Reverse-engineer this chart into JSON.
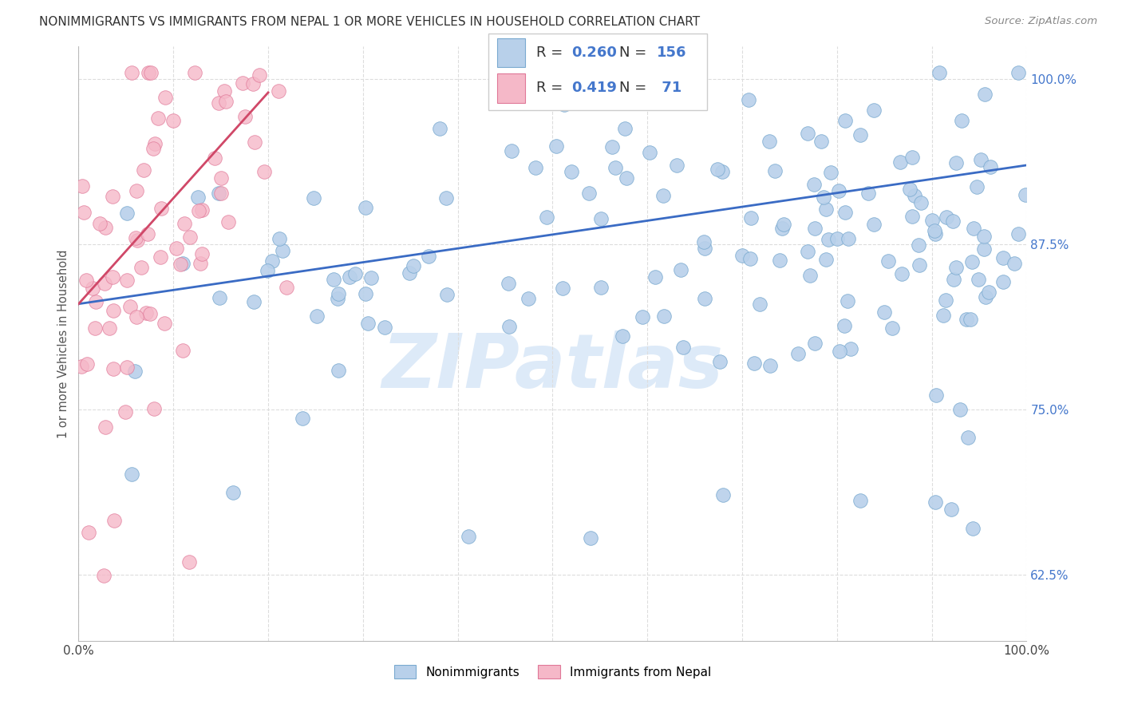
{
  "title": "NONIMMIGRANTS VS IMMIGRANTS FROM NEPAL 1 OR MORE VEHICLES IN HOUSEHOLD CORRELATION CHART",
  "source": "Source: ZipAtlas.com",
  "ylabel": "1 or more Vehicles in Household",
  "ytick_labels": [
    "62.5%",
    "75.0%",
    "87.5%",
    "100.0%"
  ],
  "ytick_values": [
    0.625,
    0.75,
    0.875,
    1.0
  ],
  "xlim": [
    0.0,
    1.0
  ],
  "ylim": [
    0.575,
    1.025
  ],
  "legend_r_blue": "0.260",
  "legend_n_blue": "156",
  "legend_r_pink": "0.419",
  "legend_n_pink": " 71",
  "blue_dot_color": "#b8d0ea",
  "blue_edge_color": "#7aaad0",
  "pink_dot_color": "#f5b8c8",
  "pink_edge_color": "#e07898",
  "trend_blue_color": "#3a6bc4",
  "trend_pink_color": "#d04868",
  "legend_label_blue": "Nonimmigrants",
  "legend_label_pink": "Immigrants from Nepal",
  "watermark": "ZIPatlas",
  "title_color": "#333333",
  "source_color": "#888888",
  "grid_color": "#dddddd",
  "ytick_color": "#4477cc",
  "background": "#ffffff",
  "blue_trend_start_y": 0.83,
  "blue_trend_end_y": 0.935,
  "pink_trend_start_y": 0.83,
  "pink_trend_end_y": 0.99
}
